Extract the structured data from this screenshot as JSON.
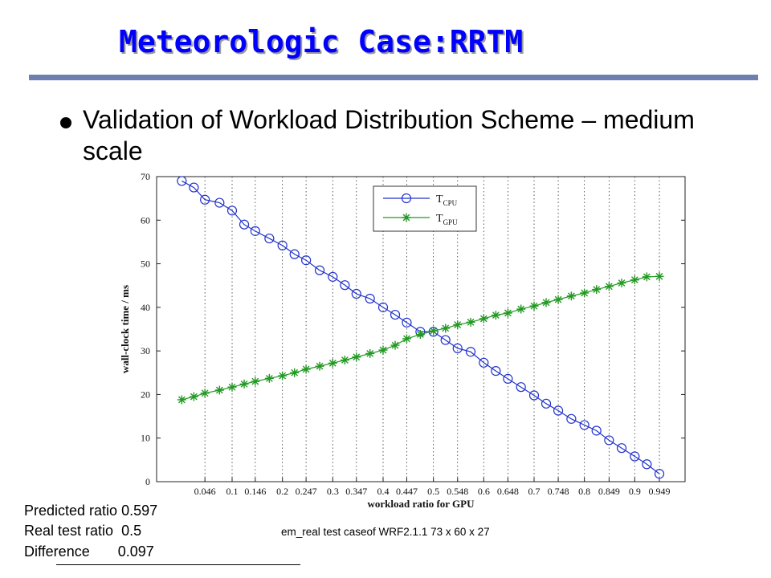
{
  "slide": {
    "title": "Meteorologic Case:RRTM",
    "bullet": "Validation of Workload Distribution Scheme – medium scale",
    "accent_color": "#0000ff",
    "rule_color": "#6f7fb0"
  },
  "notes": {
    "predicted_label": "Predicted ratio",
    "predicted_value": "0.597",
    "real_label": "Real test ratio",
    "real_value": "0.5",
    "difference_label": "Difference",
    "difference_value": "0.097",
    "case_text": "em_real test caseof WRF2.1.1     73 x 60 x 27"
  },
  "chart_data": {
    "type": "line",
    "xlabel": "workload ratio for GPU",
    "ylabel": "wall-clock time / ms",
    "xlim": [
      -0.05,
      1.0
    ],
    "ylim": [
      0,
      70
    ],
    "xticks": [
      0.046,
      0.1,
      0.146,
      0.2,
      0.247,
      0.3,
      0.347,
      0.4,
      0.447,
      0.5,
      0.548,
      0.6,
      0.648,
      0.7,
      0.748,
      0.8,
      0.849,
      0.9,
      0.949
    ],
    "xtick_labels": [
      "0.046",
      "0.1",
      "0.146",
      "0.2",
      "0.247",
      "0.3",
      "0.347",
      "0.4",
      "0.447",
      "0.5",
      "0.548",
      "0.6",
      "0.648",
      "0.7",
      "0.748",
      "0.8",
      "0.849",
      "0.9",
      "0.949"
    ],
    "yticks": [
      0,
      10,
      20,
      30,
      40,
      50,
      60,
      70
    ],
    "grid": "vertical-dotted",
    "legend_position": "top-left",
    "x": [
      0.0,
      0.024,
      0.046,
      0.075,
      0.1,
      0.124,
      0.146,
      0.174,
      0.2,
      0.224,
      0.247,
      0.274,
      0.3,
      0.324,
      0.347,
      0.374,
      0.4,
      0.424,
      0.447,
      0.474,
      0.5,
      0.524,
      0.548,
      0.574,
      0.6,
      0.624,
      0.648,
      0.674,
      0.7,
      0.724,
      0.748,
      0.774,
      0.8,
      0.824,
      0.849,
      0.874,
      0.9,
      0.924,
      0.949
    ],
    "series": [
      {
        "name": "T",
        "name_sub": "CPU",
        "color": "#2233cc",
        "marker": "circle",
        "values": [
          69,
          67.5,
          64.7,
          64,
          62.2,
          59,
          57.5,
          55.8,
          54.2,
          52.2,
          50.8,
          48.5,
          47,
          45.1,
          43.1,
          42,
          40,
          38.3,
          36.5,
          34.4,
          34.4,
          32.5,
          30.6,
          29.8,
          27.3,
          25.4,
          23.6,
          21.7,
          19.8,
          17.9,
          16.3,
          14.4,
          13,
          11.7,
          9.5,
          7.7,
          5.8,
          4,
          1.8
        ]
      },
      {
        "name": "T",
        "name_sub": "GPU",
        "color": "#229922",
        "marker": "star",
        "values": [
          18.8,
          19.5,
          20.3,
          21,
          21.7,
          22.4,
          23,
          23.7,
          24.3,
          25,
          25.8,
          26.5,
          27.2,
          27.9,
          28.6,
          29.4,
          30.2,
          31.3,
          32.8,
          33.8,
          34.6,
          35.2,
          36,
          36.6,
          37.4,
          38.2,
          38.7,
          39.6,
          40.3,
          41.1,
          41.8,
          42.6,
          43.3,
          44.1,
          44.8,
          45.6,
          46.3,
          47,
          47.1
        ]
      }
    ]
  }
}
